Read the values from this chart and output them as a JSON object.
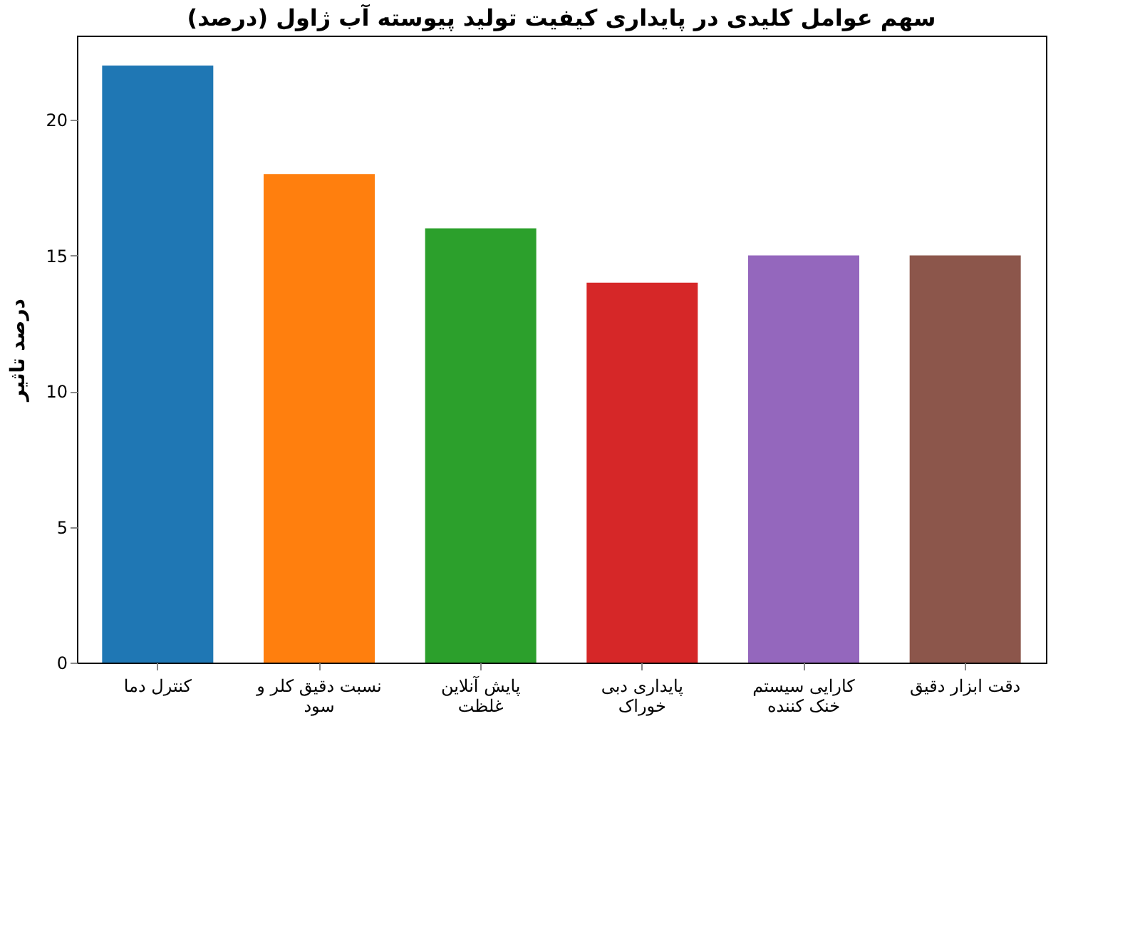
{
  "chart_data": {
    "type": "bar",
    "title": "سهم عوامل کلیدی در پایداری کیفیت تولید پیوسته آب ژاول (درصد)",
    "ylabel": "درصد تاثیر",
    "categories": [
      "کنترل دما",
      "نسبت دقیق کلر و سود",
      "پایش آنلاین غلظت",
      "پایداری دبی خوراک",
      "کارایی سیستم خنک کننده",
      "دقت ابزار دقیق"
    ],
    "values": [
      22,
      18,
      16,
      14,
      15,
      15
    ],
    "colors": [
      "#1f77b4",
      "#ff7f0e",
      "#2ca02c",
      "#d62728",
      "#9467bd",
      "#8c564b"
    ],
    "ylim": [
      0,
      23.1
    ],
    "yticks": [
      0,
      5,
      10,
      15,
      20
    ],
    "grid": false,
    "legend": false
  }
}
